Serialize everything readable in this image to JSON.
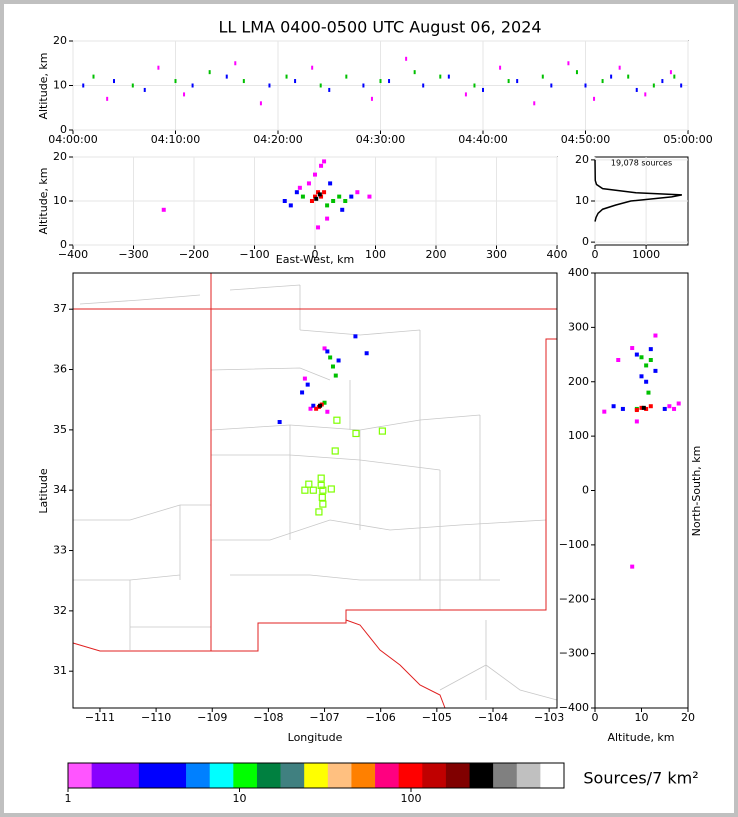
{
  "chart_data": [
    {
      "type": "scatter",
      "title": "LL LMA 0400-0500 UTC August 06, 2024",
      "ylabel": "Altitude, km",
      "grid": true,
      "xlim": [
        0,
        3600
      ],
      "xticks": [
        {
          "value": 0,
          "label": "04:00:00"
        },
        {
          "value": 600,
          "label": "04:10:00"
        },
        {
          "value": 1200,
          "label": "04:20:00"
        },
        {
          "value": 1800,
          "label": "04:30:00"
        },
        {
          "value": 2400,
          "label": "04:40:00"
        },
        {
          "value": 3000,
          "label": "04:50:00"
        },
        {
          "value": 3600,
          "label": "05:00:00"
        }
      ],
      "ylim": [
        0,
        20
      ],
      "yticks": [
        0,
        10,
        20
      ],
      "series": [
        {
          "color": "#0000ff",
          "marker": "streak",
          "x": [
            60,
            240,
            420,
            700,
            900,
            1150,
            1300,
            1500,
            1700,
            1850,
            2050,
            2200,
            2400,
            2600,
            2800,
            3000,
            3150,
            3300,
            3450,
            3560
          ],
          "y": [
            10,
            11,
            9,
            10,
            12,
            10,
            11,
            9,
            10,
            11,
            10,
            12,
            9,
            11,
            10,
            10,
            12,
            9,
            11,
            10
          ]
        },
        {
          "color": "#00c000",
          "marker": "streak",
          "x": [
            120,
            350,
            600,
            800,
            1000,
            1250,
            1450,
            1600,
            1800,
            2000,
            2150,
            2350,
            2550,
            2750,
            2950,
            3100,
            3250,
            3400,
            3520
          ],
          "y": [
            12,
            10,
            11,
            13,
            11,
            12,
            10,
            12,
            11,
            13,
            12,
            10,
            11,
            12,
            13,
            11,
            12,
            10,
            12
          ]
        },
        {
          "color": "#ff00ff",
          "marker": "streak",
          "x": [
            200,
            500,
            650,
            950,
            1100,
            1400,
            1750,
            1950,
            2300,
            2500,
            2700,
            2900,
            3050,
            3200,
            3350,
            3500
          ],
          "y": [
            7,
            14,
            8,
            15,
            6,
            14,
            7,
            16,
            8,
            14,
            6,
            15,
            7,
            14,
            8,
            13
          ]
        }
      ]
    },
    {
      "type": "scatter",
      "xlabel": "East-West, km",
      "ylabel": "Altitude, km",
      "grid": true,
      "xlim": [
        -400,
        400
      ],
      "xticks": [
        {
          "value": -400,
          "label": "−400"
        },
        {
          "value": -300,
          "label": "−300"
        },
        {
          "value": -200,
          "label": "−200"
        },
        {
          "value": -100,
          "label": "−100"
        },
        0,
        100,
        200,
        300,
        400
      ],
      "ylim": [
        0,
        20
      ],
      "yticks": [
        0,
        10,
        20
      ],
      "series": [
        {
          "color": "#ff00ff",
          "marker": "square",
          "x": [
            0,
            10,
            -10,
            20,
            5,
            70,
            -25,
            15,
            90,
            -250
          ],
          "y": [
            16,
            18,
            14,
            6,
            4,
            12,
            13,
            19,
            11,
            8
          ]
        },
        {
          "color": "#0000ff",
          "marker": "square",
          "x": [
            -40,
            -30,
            60,
            45,
            -50,
            25
          ],
          "y": [
            9,
            12,
            11,
            8,
            10,
            14
          ]
        },
        {
          "color": "#00c000",
          "marker": "square",
          "x": [
            30,
            40,
            -20,
            20,
            50
          ],
          "y": [
            10,
            11,
            11,
            9,
            10
          ]
        },
        {
          "color": "#ff0000",
          "marker": "square",
          "x": [
            0,
            5,
            10,
            -5,
            15
          ],
          "y": [
            11,
            12,
            11,
            10,
            12
          ]
        },
        {
          "color": "#000000",
          "marker": "square",
          "x": [
            8,
            2
          ],
          "y": [
            11.5,
            10.5
          ]
        }
      ]
    },
    {
      "type": "line",
      "annotation": "19,078 sources",
      "grid": true,
      "xlim": [
        0,
        1820
      ],
      "xticks": [
        0,
        1000
      ],
      "ylim": [
        -0.7,
        20.7
      ],
      "yticks": [
        0,
        10,
        20
      ],
      "series": [
        {
          "color": "#000000",
          "x": [
            0,
            20,
            60,
            150,
            400,
            700,
            1500,
            1700,
            800,
            150,
            30,
            5,
            0
          ],
          "y": [
            5,
            6,
            7,
            8,
            9,
            10,
            11,
            11.5,
            12,
            13,
            14,
            15,
            20
          ]
        }
      ]
    },
    {
      "type": "scatter",
      "xlabel": "Longitude",
      "ylabel": "Latitude",
      "xlim": [
        -111.48,
        -102.86
      ],
      "xticks": [
        {
          "value": -111,
          "label": "−111"
        },
        {
          "value": -110,
          "label": "−110"
        },
        {
          "value": -109,
          "label": "−109"
        },
        {
          "value": -108,
          "label": "−108"
        },
        {
          "value": -107,
          "label": "−107"
        },
        {
          "value": -106,
          "label": "−106"
        },
        {
          "value": -105,
          "label": "−105"
        },
        {
          "value": -104,
          "label": "−104"
        },
        {
          "value": -103,
          "label": "−103"
        }
      ],
      "ylim": [
        30.39,
        37.6
      ],
      "yticks": [
        31,
        32,
        33,
        34,
        35,
        36,
        37
      ],
      "series": [
        {
          "color": "#ff00ff",
          "marker": "square",
          "x": [
            -107.0,
            -106.95,
            -107.25,
            -107.35
          ],
          "y": [
            36.35,
            35.3,
            35.35,
            35.85
          ]
        },
        {
          "color": "#0000ff",
          "marker": "square",
          "x": [
            -106.95,
            -107.3,
            -107.4,
            -106.45,
            -106.25,
            -107.8,
            -107.2,
            -106.75
          ],
          "y": [
            36.3,
            35.75,
            35.62,
            36.55,
            36.27,
            35.13,
            35.4,
            36.15
          ]
        },
        {
          "color": "#00c000",
          "marker": "square",
          "x": [
            -106.9,
            -106.85,
            -106.8,
            -107.0
          ],
          "y": [
            36.2,
            36.05,
            35.9,
            35.45
          ]
        },
        {
          "color": "#ff0000",
          "marker": "square",
          "x": [
            -107.1,
            -107.05,
            -107.15
          ],
          "y": [
            35.38,
            35.42,
            35.35
          ]
        },
        {
          "color": "#000000",
          "marker": "square",
          "x": [
            -107.08
          ],
          "y": [
            35.4
          ]
        },
        {
          "color": "#7fff00",
          "marker": "open-square",
          "x": [
            -107.06,
            -107.28,
            -107.06,
            -107.35,
            -107.2,
            -107.03,
            -106.88,
            -107.04,
            -107.03,
            -107.1,
            -106.78,
            -106.44,
            -105.97,
            -106.81
          ],
          "y": [
            34.2,
            34.1,
            34.08,
            34.0,
            34.0,
            34.0,
            34.02,
            33.88,
            33.77,
            33.64,
            35.16,
            34.94,
            34.98,
            34.65
          ]
        }
      ]
    },
    {
      "type": "scatter",
      "xlabel": "Altitude, km",
      "ylabel": "North-South, km",
      "xlim": [
        0,
        20
      ],
      "xticks": [
        0,
        10,
        20
      ],
      "ylim": [
        -400,
        400
      ],
      "yticks": [
        {
          "value": -400,
          "label": "−400"
        },
        {
          "value": -300,
          "label": "−300"
        },
        {
          "value": -200,
          "label": "−200"
        },
        {
          "value": -100,
          "label": "−100"
        },
        0,
        100,
        200,
        300,
        400
      ],
      "series": [
        {
          "color": "#ff00ff",
          "marker": "square",
          "x": [
            2,
            18,
            16,
            8,
            13,
            5,
            9,
            17,
            8
          ],
          "y": [
            145,
            160,
            155,
            262,
            285,
            240,
            127,
            150,
            -140
          ]
        },
        {
          "color": "#0000ff",
          "marker": "square",
          "x": [
            10,
            11,
            12,
            9,
            13,
            6,
            4,
            15
          ],
          "y": [
            210,
            200,
            260,
            250,
            220,
            150,
            155,
            150
          ]
        },
        {
          "color": "#00c000",
          "marker": "square",
          "x": [
            11,
            12,
            10,
            11.5,
            9
          ],
          "y": [
            230,
            240,
            245,
            180,
            150
          ]
        },
        {
          "color": "#ff0000",
          "marker": "square",
          "x": [
            10,
            11,
            12,
            9
          ],
          "y": [
            152,
            150,
            155,
            148
          ]
        },
        {
          "color": "#000000",
          "marker": "square",
          "x": [
            10.5
          ],
          "y": [
            152
          ]
        }
      ]
    },
    {
      "type": "colorbar",
      "label": "Sources/7 km²",
      "log": true,
      "xlim": [
        1,
        780
      ],
      "xticks": [
        1,
        10,
        100
      ],
      "colors": [
        "#ff55ff",
        "#8800ff",
        "#8800ff",
        "#0000ff",
        "#0000ff",
        "#0080ff",
        "#00ffff",
        "#00ff00",
        "#008040",
        "#408080",
        "#ffff00",
        "#ffc080",
        "#ff8000",
        "#ff0080",
        "#ff0000",
        "#c00000",
        "#800000",
        "#000000",
        "#808080",
        "#c0c0c0",
        "#ffffff"
      ]
    }
  ]
}
